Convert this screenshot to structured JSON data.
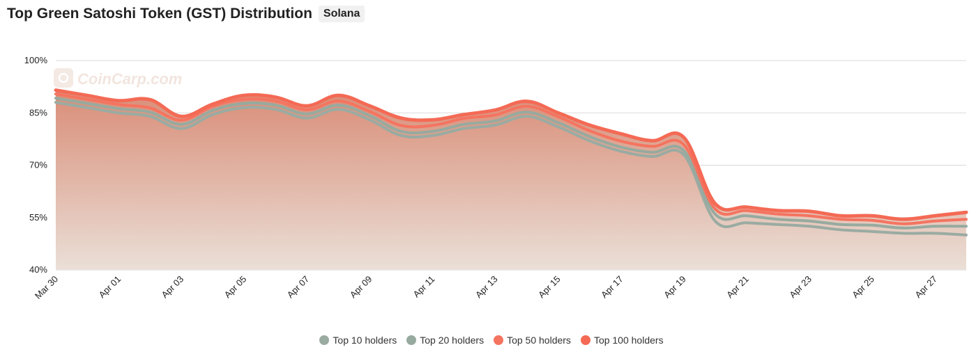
{
  "header": {
    "title": "Top Green Satoshi Token (GST) Distribution",
    "badge": "Solana"
  },
  "watermark": {
    "text": "CoinCarp.com",
    "icon": "coincarp-logo-icon"
  },
  "colors": {
    "top10": "#9aaba2",
    "top20": "#97aa9f",
    "top50": "#f47460",
    "top100": "#f46a55",
    "fill_top": "#d98d77",
    "fill_bottom": "#eadfd7",
    "grid": "#d9d9d9"
  },
  "chart_data": {
    "type": "area",
    "title": "",
    "xlabel": "",
    "ylabel": "",
    "y_unit": "%",
    "ylim": [
      40,
      100
    ],
    "yticks": [
      40,
      55,
      70,
      85,
      100
    ],
    "ytick_labels": [
      "40%",
      "55%",
      "70%",
      "85%",
      "100%"
    ],
    "x": [
      "Mar 30",
      "Mar 31",
      "Apr 01",
      "Apr 02",
      "Apr 03",
      "Apr 04",
      "Apr 05",
      "Apr 06",
      "Apr 07",
      "Apr 08",
      "Apr 09",
      "Apr 10",
      "Apr 11",
      "Apr 12",
      "Apr 13",
      "Apr 14",
      "Apr 15",
      "Apr 16",
      "Apr 17",
      "Apr 18",
      "Apr 19",
      "Apr 20",
      "Apr 21",
      "Apr 22",
      "Apr 23",
      "Apr 24",
      "Apr 25",
      "Apr 26",
      "Apr 27",
      "Apr 28"
    ],
    "xtick_labels": [
      "Mar 30",
      "Apr 01",
      "Apr 03",
      "Apr 05",
      "Apr 07",
      "Apr 09",
      "Apr 11",
      "Apr 13",
      "Apr 15",
      "Apr 17",
      "Apr 19",
      "Apr 21",
      "Apr 23",
      "Apr 25",
      "Apr 27"
    ],
    "grid": true,
    "legend_position": "bottom-center",
    "series": [
      {
        "name": "Top 10 holders",
        "values": [
          88,
          86.5,
          85,
          84,
          80.5,
          84.5,
          86.5,
          86,
          83.5,
          86,
          83,
          78.5,
          78.5,
          80.5,
          81.5,
          84,
          81,
          77,
          74,
          72.5,
          73,
          54,
          53.5,
          53,
          52.5,
          51.5,
          51,
          50.5,
          50.5,
          50
        ]
      },
      {
        "name": "Top 20 holders",
        "values": [
          89.2,
          87.7,
          86.2,
          85.2,
          81.7,
          85.7,
          87.7,
          87.2,
          84.7,
          87.2,
          84.2,
          79.7,
          79.7,
          81.7,
          82.7,
          85.2,
          82.2,
          78.2,
          75.2,
          73.7,
          74.2,
          56,
          55.5,
          54.5,
          54,
          53,
          52.8,
          52,
          52.5,
          52.5
        ]
      },
      {
        "name": "Top 50 holders",
        "values": [
          90.4,
          88.9,
          87.4,
          86.4,
          82.9,
          86.9,
          88.9,
          88.4,
          85.9,
          88.4,
          85.4,
          81.4,
          81.4,
          83.4,
          84.4,
          86.9,
          83.9,
          79.9,
          76.9,
          75.4,
          75.9,
          57.5,
          57,
          56,
          55.5,
          54.5,
          54.2,
          53.2,
          54,
          54.5
        ]
      },
      {
        "name": "Top 100 holders",
        "values": [
          91.5,
          90,
          88.5,
          88.8,
          84,
          87.5,
          90,
          89.5,
          87,
          90,
          87,
          83.5,
          83,
          84.5,
          85.8,
          88.3,
          85,
          81.5,
          79,
          77,
          78,
          59,
          58,
          57,
          56.8,
          55.5,
          55.5,
          54.5,
          55.5,
          56.5
        ]
      }
    ]
  }
}
